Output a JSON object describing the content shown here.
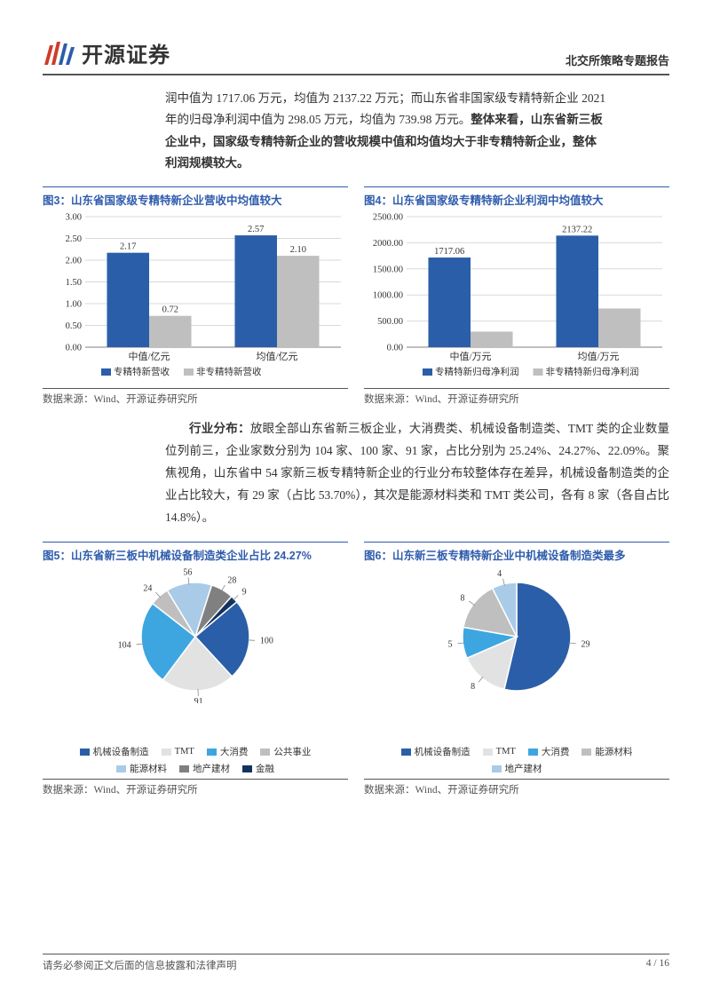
{
  "header": {
    "logo_text": "开源证券",
    "report_type": "北交所策略专题报告"
  },
  "intro": {
    "line1_a": "润中值为 1717.06 万元，均值为 2137.22 万元；而山东省非国家级专精特新企业 2021",
    "line2_a": "年的归母净利润中值为 298.05 万元，均值为 739.98 万元。",
    "bold_a": "整体来看，山东省新三板",
    "bold_b": "企业中，国家级专精特新企业的营收规模中值和均值均大于非专精特新企业，整体",
    "bold_c": "利润规模较大。"
  },
  "chart3": {
    "title": "图3：山东省国家级专精特新企业营收中均值较大",
    "type": "bar",
    "categories": [
      "中值/亿元",
      "均值/亿元"
    ],
    "series": [
      {
        "name": "专精特新营收",
        "values": [
          2.17,
          2.57
        ],
        "color": "#2b5ea8"
      },
      {
        "name": "非专精特新营收",
        "values": [
          0.72,
          2.1
        ],
        "color": "#bfbfbf"
      }
    ],
    "ylim": [
      0,
      3.0
    ],
    "ytick_step": 0.5,
    "bar_width": 0.33,
    "label_fontsize": 10.5,
    "value_labels": [
      [
        "2.17",
        "0.72"
      ],
      [
        "2.57",
        "2.10"
      ]
    ],
    "background_color": "#ffffff",
    "source": "数据来源：Wind、开源证券研究所"
  },
  "chart4": {
    "title": "图4：山东省国家级专精特新企业利润中均值较大",
    "type": "bar",
    "categories": [
      "中值/万元",
      "均值/万元"
    ],
    "series": [
      {
        "name": "专精特新归母净利润",
        "values": [
          1717.06,
          2137.22
        ],
        "color": "#2b5ea8"
      },
      {
        "name": "非专精特新归母净利润",
        "values": [
          298.05,
          739.98
        ],
        "color": "#bfbfbf"
      }
    ],
    "ylim": [
      0,
      2500.0
    ],
    "ytick_step": 500.0,
    "bar_width": 0.33,
    "value_labels": [
      [
        "1717.06",
        ""
      ],
      [
        "2137.22",
        ""
      ]
    ],
    "label_fontsize": 10.5,
    "background_color": "#ffffff",
    "source": "数据来源：Wind、开源证券研究所"
  },
  "mid": {
    "bold_lead": "行业分布：",
    "text_a": "放眼全部山东省新三板企业，大消费类、机械设备制造类、TMT 类的企业数量位列前三，企业家数分别为 104 家、100 家、91 家，占比分别为 25.24%、24.27%、22.09%。聚焦视角，山东省中 54 家新三板专精特新企业的行业分布较整体存在差异，机械设备制造类的企业占比较大，有 29 家（占比 53.70%），其次是能源材料类和 TMT 类公司，各有 8 家（各自占比 14.8%）。"
  },
  "chart5": {
    "title": "图5：山东省新三板中机械设备制造类企业占比 24.27%",
    "type": "pie",
    "slices": [
      {
        "label": "机械设备制造",
        "value": 100,
        "color": "#2b5ea8"
      },
      {
        "label": "TMT",
        "value": 91,
        "color": "#e2e2e2"
      },
      {
        "label": "大消费",
        "value": 104,
        "color": "#3da6e0"
      },
      {
        "label": "公共事业",
        "value": 24,
        "color": "#bfbfbf"
      },
      {
        "label": "能源材料",
        "value": 56,
        "color": "#a9cbe8"
      },
      {
        "label": "地产建材",
        "value": 28,
        "color": "#808080"
      },
      {
        "label": "金融",
        "value": 9,
        "color": "#13335e"
      }
    ],
    "start_angle": -40,
    "label_fontsize": 10,
    "source": "数据来源：Wind、开源证券研究所"
  },
  "chart6": {
    "title": "图6：山东新三板专精特新企业中机械设备制造类最多",
    "type": "pie",
    "slices": [
      {
        "label": "机械设备制造",
        "value": 29,
        "color": "#2b5ea8"
      },
      {
        "label": "TMT",
        "value": 8,
        "color": "#e2e2e2"
      },
      {
        "label": "大消费",
        "value": 5,
        "color": "#3da6e0"
      },
      {
        "label": "能源材料",
        "value": 8,
        "color": "#bfbfbf"
      },
      {
        "label": "地产建材",
        "value": 4,
        "color": "#a9cbe8"
      }
    ],
    "start_angle": -90,
    "label_fontsize": 10,
    "source": "数据来源：Wind、开源证券研究所"
  },
  "footer": {
    "left": "请务必参阅正文后面的信息披露和法律声明",
    "right": "4 / 16"
  },
  "colors": {
    "brand_blue": "#2f5cad",
    "logo_red": "#d03a2a",
    "logo_blue": "#2b5ea8",
    "text": "#333333"
  }
}
